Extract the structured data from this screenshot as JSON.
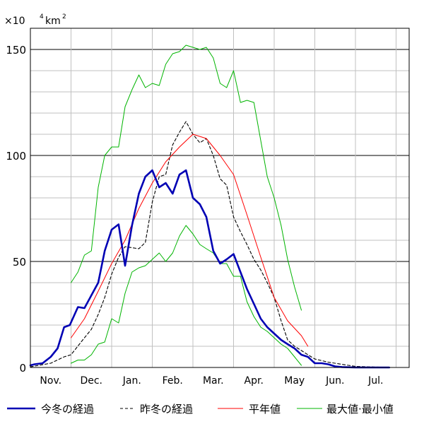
{
  "chart_data": {
    "type": "line",
    "unit": {
      "prefix": "×10",
      "exp": "4",
      "base": "km",
      "pow": "2"
    },
    "ylim": [
      0,
      160
    ],
    "yticks": [
      0,
      50,
      100,
      150
    ],
    "xlim": [
      0,
      9
    ],
    "x_unit": "months from Nov 1",
    "months": [
      "Nov.",
      "Dec.",
      "Jan.",
      "Feb.",
      "Mar.",
      "Apr.",
      "May",
      "Jun.",
      "Jul."
    ],
    "grid": true,
    "legend_position": "bottom",
    "series": [
      {
        "name": "今冬の経過",
        "color": "#0000b4",
        "style": "thick",
        "points": [
          [
            0.0,
            1
          ],
          [
            0.1,
            1.5
          ],
          [
            0.3,
            2
          ],
          [
            0.5,
            5
          ],
          [
            0.67,
            9
          ],
          [
            0.83,
            19
          ],
          [
            0.97,
            20
          ],
          [
            1.17,
            28.5
          ],
          [
            1.33,
            28
          ],
          [
            1.67,
            40
          ],
          [
            1.83,
            55
          ],
          [
            2.0,
            65
          ],
          [
            2.17,
            67.5
          ],
          [
            2.33,
            48
          ],
          [
            2.5,
            67
          ],
          [
            2.67,
            82
          ],
          [
            2.83,
            90
          ],
          [
            3.0,
            93
          ],
          [
            3.17,
            85
          ],
          [
            3.33,
            87
          ],
          [
            3.5,
            82
          ],
          [
            3.67,
            91
          ],
          [
            3.83,
            93
          ],
          [
            4.0,
            80
          ],
          [
            4.17,
            77
          ],
          [
            4.33,
            71
          ],
          [
            4.5,
            55
          ],
          [
            4.67,
            49
          ],
          [
            4.83,
            51
          ],
          [
            5.0,
            53.5
          ],
          [
            5.17,
            45
          ],
          [
            5.33,
            37
          ],
          [
            5.5,
            30
          ],
          [
            5.67,
            23
          ],
          [
            5.83,
            19
          ],
          [
            6.0,
            16
          ],
          [
            6.17,
            13
          ],
          [
            6.33,
            11
          ],
          [
            6.5,
            9
          ],
          [
            6.67,
            6
          ],
          [
            6.83,
            5
          ],
          [
            7.0,
            2
          ],
          [
            7.17,
            2
          ],
          [
            7.33,
            1.5
          ],
          [
            7.5,
            0.5
          ],
          [
            7.67,
            0.2
          ],
          [
            8.0,
            0
          ],
          [
            8.5,
            0
          ],
          [
            8.83,
            0
          ]
        ]
      },
      {
        "name": "昨冬の経過",
        "color": "#000000",
        "style": "dashed",
        "points": [
          [
            0.0,
            0.3
          ],
          [
            0.5,
            2
          ],
          [
            0.83,
            5
          ],
          [
            1.0,
            6
          ],
          [
            1.33,
            14
          ],
          [
            1.5,
            18
          ],
          [
            1.67,
            25
          ],
          [
            1.83,
            33
          ],
          [
            2.0,
            44
          ],
          [
            2.17,
            52
          ],
          [
            2.33,
            57
          ],
          [
            2.67,
            56
          ],
          [
            2.83,
            59
          ],
          [
            3.0,
            78
          ],
          [
            3.17,
            90
          ],
          [
            3.33,
            91
          ],
          [
            3.5,
            105
          ],
          [
            3.67,
            111
          ],
          [
            3.83,
            116
          ],
          [
            4.0,
            110
          ],
          [
            4.17,
            106
          ],
          [
            4.33,
            108
          ],
          [
            4.5,
            100
          ],
          [
            4.67,
            89
          ],
          [
            4.83,
            86
          ],
          [
            5.0,
            71
          ],
          [
            5.17,
            64
          ],
          [
            5.33,
            58
          ],
          [
            5.5,
            51
          ],
          [
            5.67,
            46
          ],
          [
            5.83,
            40
          ],
          [
            6.0,
            33
          ],
          [
            6.17,
            22
          ],
          [
            6.33,
            13
          ],
          [
            6.5,
            10
          ],
          [
            6.67,
            8
          ],
          [
            6.83,
            6
          ],
          [
            7.0,
            4
          ],
          [
            7.33,
            2.5
          ],
          [
            7.83,
            1
          ],
          [
            8.0,
            0.5
          ],
          [
            8.83,
            0
          ]
        ]
      },
      {
        "name": "平年値",
        "color": "#ff0000",
        "style": "thin",
        "points": [
          [
            1.0,
            14
          ],
          [
            1.33,
            23
          ],
          [
            1.67,
            36
          ],
          [
            2.0,
            49
          ],
          [
            2.33,
            60
          ],
          [
            2.67,
            75
          ],
          [
            3.0,
            87
          ],
          [
            3.33,
            97
          ],
          [
            3.67,
            104
          ],
          [
            4.0,
            110
          ],
          [
            4.33,
            108
          ],
          [
            4.67,
            100
          ],
          [
            5.0,
            91
          ],
          [
            5.33,
            72
          ],
          [
            5.67,
            52
          ],
          [
            6.0,
            33
          ],
          [
            6.33,
            22
          ],
          [
            6.67,
            15
          ],
          [
            6.83,
            10
          ]
        ]
      },
      {
        "name": "最大値・最小値",
        "color": "#00b400",
        "style": "thin",
        "points": [
          [
            1.0,
            40
          ],
          [
            1.17,
            45
          ],
          [
            1.33,
            53
          ],
          [
            1.5,
            55
          ],
          [
            1.67,
            85
          ],
          [
            1.83,
            100
          ],
          [
            2.0,
            104
          ],
          [
            2.17,
            104
          ],
          [
            2.33,
            123
          ],
          [
            2.5,
            131
          ],
          [
            2.67,
            138
          ],
          [
            2.83,
            132
          ],
          [
            3.0,
            134
          ],
          [
            3.17,
            133
          ],
          [
            3.33,
            143
          ],
          [
            3.5,
            148
          ],
          [
            3.67,
            149
          ],
          [
            3.83,
            152
          ],
          [
            4.0,
            151
          ],
          [
            4.17,
            150
          ],
          [
            4.33,
            151
          ],
          [
            4.5,
            146
          ],
          [
            4.67,
            134
          ],
          [
            4.83,
            132
          ],
          [
            5.0,
            140
          ],
          [
            5.17,
            125
          ],
          [
            5.33,
            126
          ],
          [
            5.5,
            125
          ],
          [
            5.67,
            107
          ],
          [
            5.83,
            90
          ],
          [
            6.0,
            80
          ],
          [
            6.17,
            67
          ],
          [
            6.33,
            51
          ],
          [
            6.5,
            38
          ],
          [
            6.67,
            27
          ]
        ]
      },
      {
        "name": "最大値・最小値",
        "color": "#00b400",
        "style": "thin",
        "points": [
          [
            1.0,
            2
          ],
          [
            1.17,
            3.5
          ],
          [
            1.33,
            3.5
          ],
          [
            1.5,
            6
          ],
          [
            1.67,
            11
          ],
          [
            1.83,
            12
          ],
          [
            2.0,
            23
          ],
          [
            2.17,
            21
          ],
          [
            2.33,
            35
          ],
          [
            2.5,
            45
          ],
          [
            2.67,
            47
          ],
          [
            2.83,
            48
          ],
          [
            3.0,
            51
          ],
          [
            3.17,
            54
          ],
          [
            3.33,
            50
          ],
          [
            3.5,
            54
          ],
          [
            3.67,
            62
          ],
          [
            3.83,
            67
          ],
          [
            4.0,
            63
          ],
          [
            4.17,
            58
          ],
          [
            4.33,
            56
          ],
          [
            4.5,
            54
          ],
          [
            4.67,
            49
          ],
          [
            4.83,
            49
          ],
          [
            5.0,
            43
          ],
          [
            5.17,
            43
          ],
          [
            5.33,
            31
          ],
          [
            5.5,
            24
          ],
          [
            5.67,
            19
          ],
          [
            5.83,
            17
          ],
          [
            6.0,
            14
          ],
          [
            6.17,
            11
          ],
          [
            6.33,
            9
          ],
          [
            6.5,
            5
          ],
          [
            6.67,
            1
          ]
        ]
      }
    ]
  },
  "legend": {
    "items": [
      {
        "label": "今冬の経過",
        "color": "#0000b4",
        "style": "thick"
      },
      {
        "label": "昨冬の経過",
        "color": "#000000",
        "style": "dashed"
      },
      {
        "label": "平年値",
        "color": "#ff0000",
        "style": "thin"
      },
      {
        "label": "最大値·最小値",
        "color": "#00b400",
        "style": "thin"
      }
    ]
  }
}
